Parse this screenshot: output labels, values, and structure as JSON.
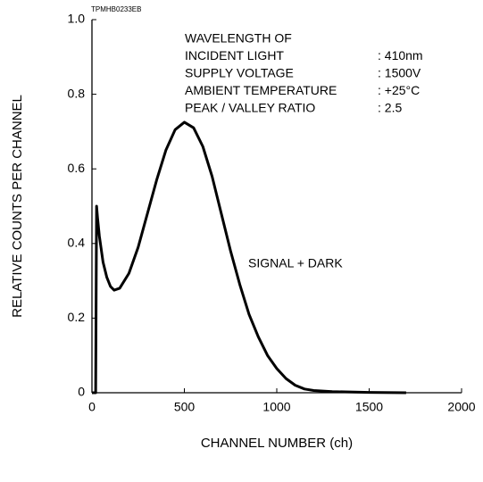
{
  "chart_data": {
    "type": "line",
    "code": "TPMHB0233EB",
    "xlabel": "CHANNEL NUMBER (ch)",
    "ylabel": "RELATIVE COUNTS PER CHANNEL",
    "xlim": [
      0,
      2000
    ],
    "xticks": [
      0,
      500,
      1000,
      1500,
      2000
    ],
    "ylim": [
      0,
      1
    ],
    "yticks": [
      0,
      0.2,
      0.4,
      0.6,
      0.8,
      {
        "value": 1,
        "label": "1.0"
      }
    ],
    "series": [
      {
        "name": "SIGNAL + DARK",
        "color": "#000000",
        "x": [
          0,
          20,
          25,
          30,
          40,
          60,
          80,
          100,
          120,
          150,
          200,
          250,
          300,
          350,
          400,
          450,
          500,
          550,
          600,
          650,
          700,
          750,
          800,
          850,
          900,
          950,
          1000,
          1050,
          1100,
          1150,
          1200,
          1300,
          1500,
          1700
        ],
        "values": [
          0,
          0,
          0.5,
          0.47,
          0.42,
          0.35,
          0.31,
          0.285,
          0.275,
          0.28,
          0.32,
          0.39,
          0.48,
          0.57,
          0.65,
          0.705,
          0.725,
          0.71,
          0.66,
          0.58,
          0.48,
          0.38,
          0.29,
          0.21,
          0.15,
          0.1,
          0.065,
          0.038,
          0.02,
          0.01,
          0.006,
          0.003,
          0.001,
          0
        ]
      }
    ],
    "conditions": [
      {
        "label": "WAVELENGTH OF"
      },
      {
        "label": "INCIDENT LIGHT",
        "value": ": 410nm"
      },
      {
        "label": "SUPPLY VOLTAGE",
        "value": ": 1500V"
      },
      {
        "label": "AMBIENT TEMPERATURE",
        "value": ": +25°C"
      },
      {
        "label": "PEAK / VALLEY RATIO",
        "value": ": 2.5"
      }
    ]
  }
}
